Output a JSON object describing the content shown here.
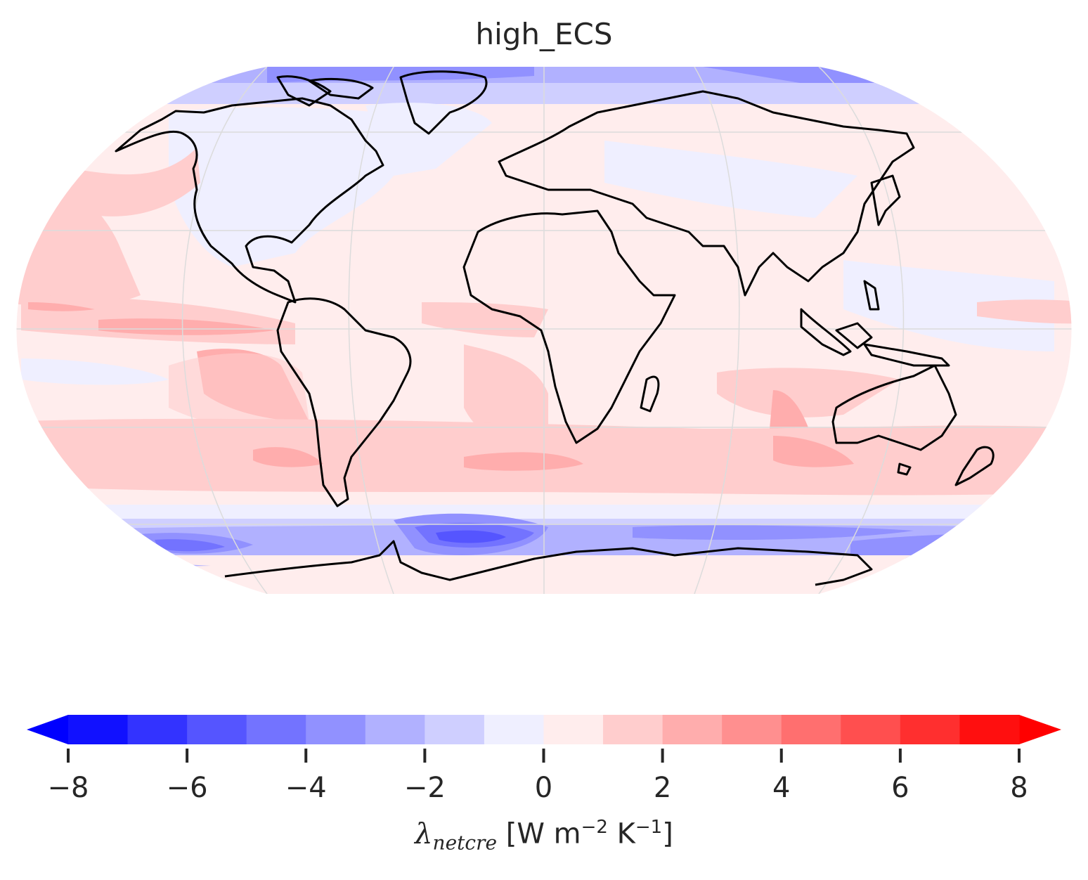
{
  "title": "high_ECS",
  "map": {
    "projection": "Robinson",
    "coastlines": true,
    "gridlines": true,
    "central_longitude": 0
  },
  "colorbar": {
    "label_symbol": "λ",
    "label_subscript": "netcre",
    "label_units_open": " [W m",
    "label_exp1": "−2",
    "label_mid": " K",
    "label_exp2": "−1",
    "label_close": "]",
    "ticks": [
      "−8",
      "−6",
      "−4",
      "−2",
      "0",
      "2",
      "4",
      "6",
      "8"
    ],
    "levels": [
      -8,
      -7,
      -6,
      -5,
      -4,
      -3,
      -2,
      -1,
      0,
      1,
      2,
      3,
      4,
      5,
      6,
      7,
      8
    ],
    "colors": [
      "#1111ff",
      "#3333ff",
      "#5555ff",
      "#7373ff",
      "#9191ff",
      "#b1b1ff",
      "#cfcfff",
      "#efefff",
      "#ffeded",
      "#ffcdcd",
      "#ffadad",
      "#ff8f8f",
      "#ff6f6f",
      "#ff4f4f",
      "#ff2f2f",
      "#ff0f0f"
    ],
    "extend": "both",
    "under_color": "#0000ff",
    "over_color": "#ff0000",
    "colormap": "bwr"
  }
}
